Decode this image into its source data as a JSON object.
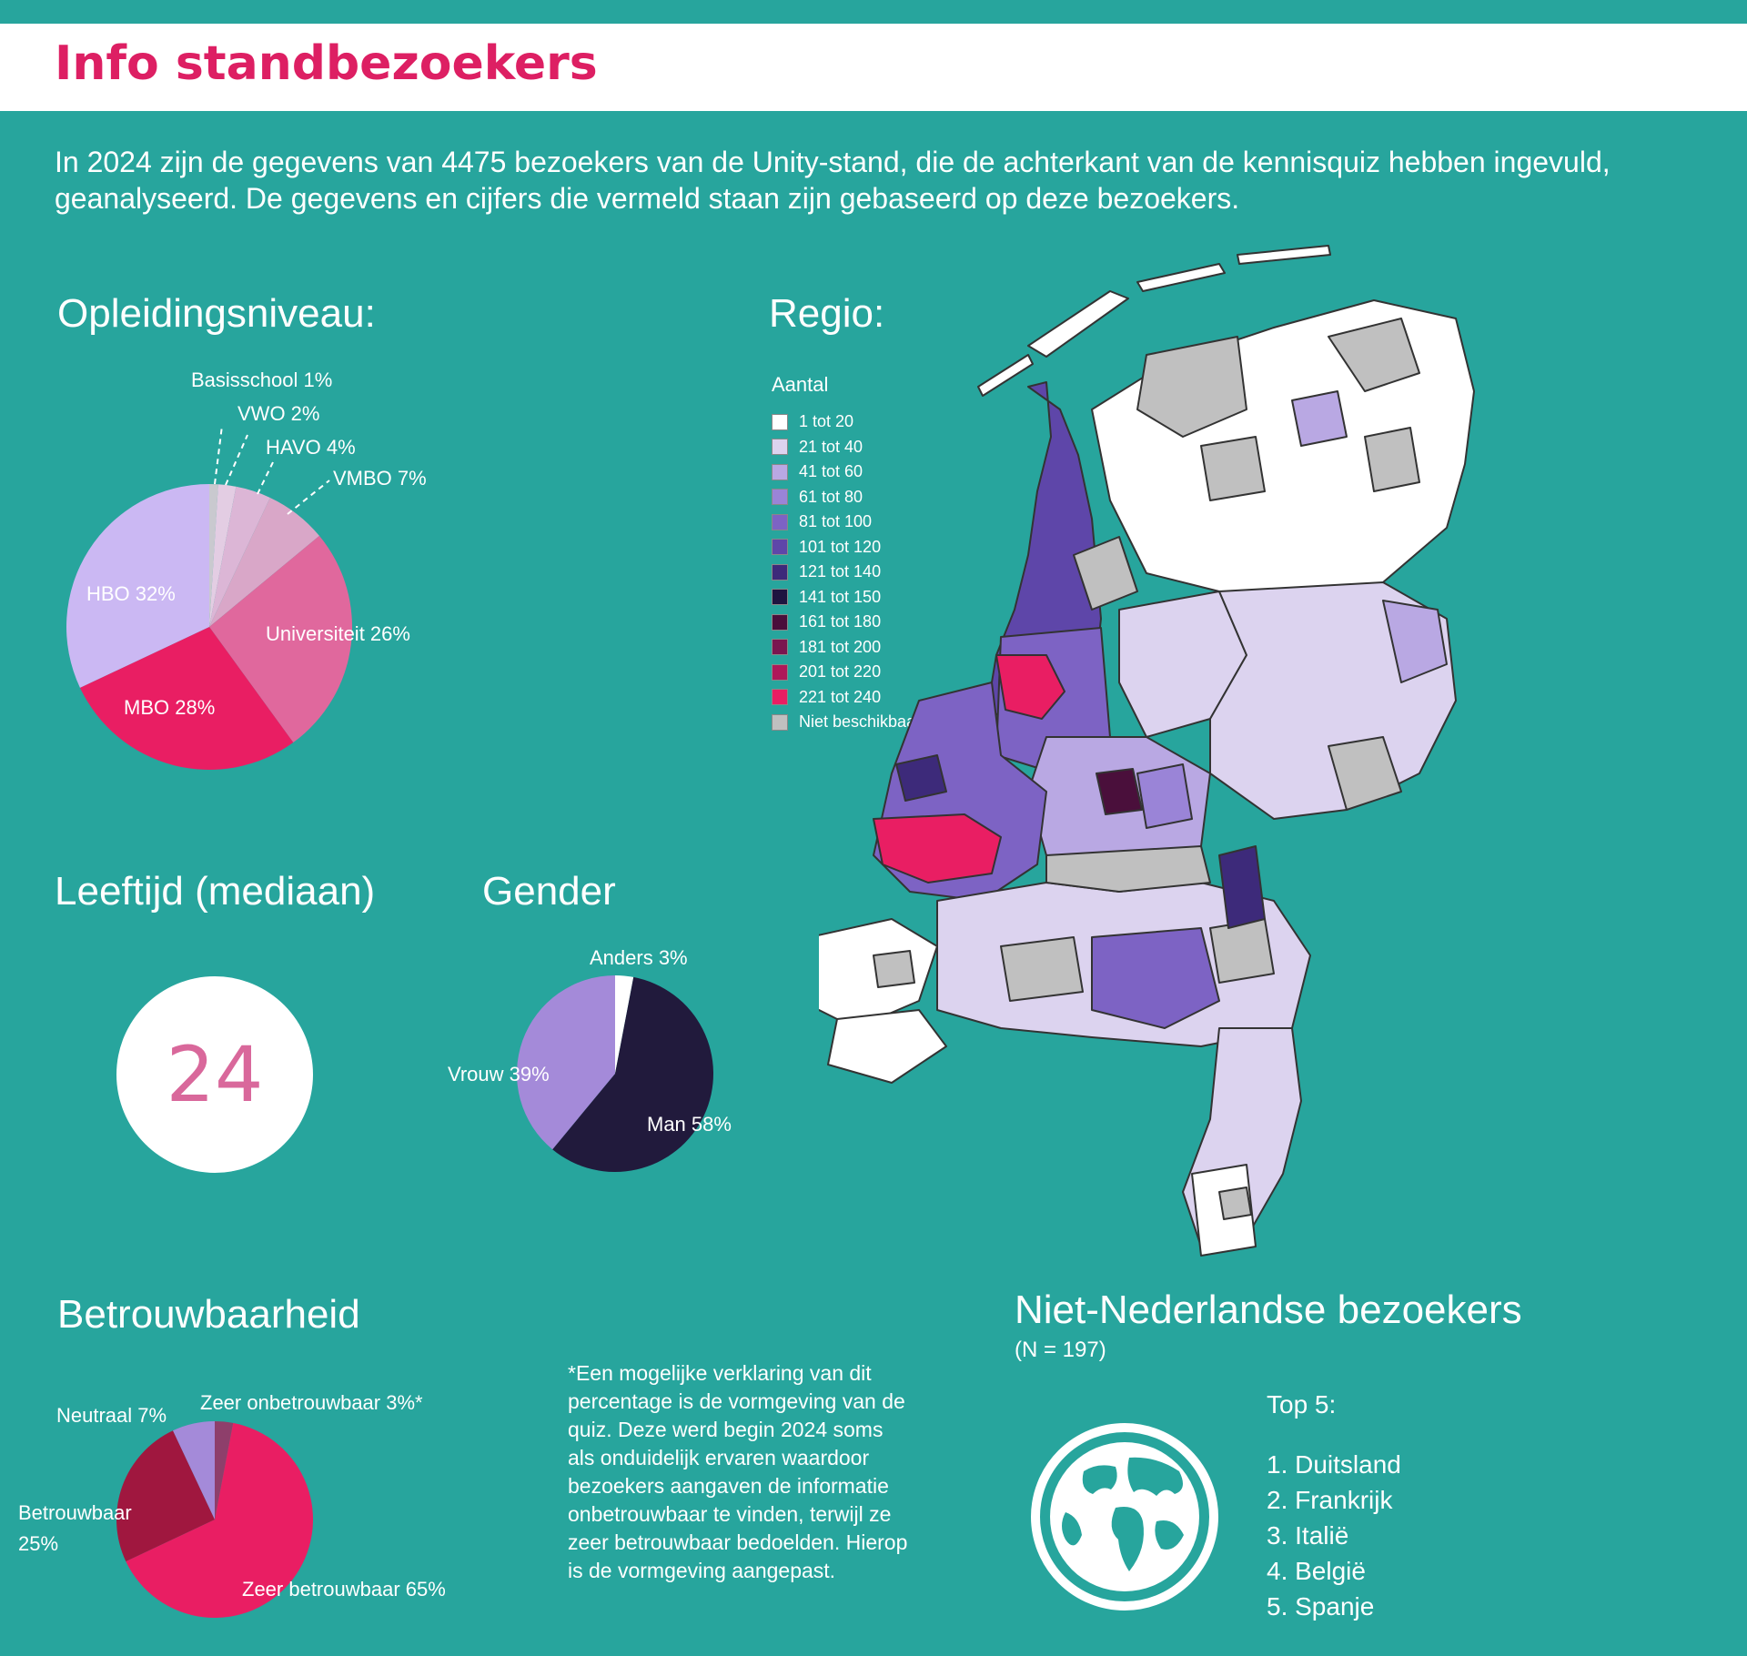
{
  "header": {
    "title": "Info standbezoekers"
  },
  "intro": {
    "text": "In 2024 zijn de gegevens van 4475 bezoekers van de Unity-stand, die de achterkant van de kennisquiz hebben ingevuld, geanalyseerd. De gegevens en cijfers die vermeld staan zijn gebaseerd op deze bezoekers."
  },
  "education": {
    "title": "Opleidingsniveau:"
  },
  "region": {
    "title": "Regio:"
  },
  "age": {
    "title": "Leeftijd (mediaan)",
    "value": "24"
  },
  "gender": {
    "title": "Gender"
  },
  "reliability": {
    "title": "Betrouwbaarheid"
  },
  "note": {
    "text": "*Een mogelijke verklaring van dit percentage is de vormgeving van de quiz. Deze werd begin 2024 soms als onduidelijk ervaren waardoor bezoekers aangaven de informatie onbetrouwbaar te vinden, terwijl ze zeer betrouwbaar bedoelden. Hierop is de vormgeving aangepast."
  },
  "foreign": {
    "title": "Niet-Nederlandse bezoekers",
    "subtitle": "(N = 197)",
    "top5_title": "Top 5:",
    "items": [
      "1. Duitsland",
      "2. Frankrijk",
      "3. Italië",
      "4. België",
      "5. Spanje"
    ],
    "icon": "globe-icon"
  },
  "legend": {
    "title": "Aantal",
    "items": [
      {
        "label": "1 tot 20",
        "color": "#ffffff"
      },
      {
        "label": "21 tot 40",
        "color": "#dcd3ef"
      },
      {
        "label": "41 tot 60",
        "color": "#b9a8e3"
      },
      {
        "label": "61 tot 80",
        "color": "#9a84d7"
      },
      {
        "label": "81 tot 100",
        "color": "#7d63c4"
      },
      {
        "label": "101 tot 120",
        "color": "#5e46a9"
      },
      {
        "label": "121 tot 140",
        "color": "#3d2a7a"
      },
      {
        "label": "141 tot 150",
        "color": "#1e1440"
      },
      {
        "label": "161 tot 180",
        "color": "#4a0f3b"
      },
      {
        "label": "181 tot 200",
        "color": "#7a1650"
      },
      {
        "label": "201 tot 220",
        "color": "#ae1859"
      },
      {
        "label": "221 tot 240",
        "color": "#e91e63"
      },
      {
        "label": "Niet beschikbaar",
        "color": "#c0c0c0"
      }
    ]
  },
  "chart_data": [
    {
      "type": "pie",
      "categories": [
        "Basisschool",
        "VWO",
        "HAVO",
        "VMBO",
        "Universiteit",
        "MBO",
        "HBO"
      ],
      "values": [
        1,
        2,
        4,
        7,
        26,
        28,
        32
      ],
      "labels": [
        "Basisschool 1%",
        "VWO 2%",
        "HAVO 4%",
        "VMBO 7%",
        "Universiteit 26%",
        "MBO 28%",
        "HBO 32%"
      ],
      "colors": [
        "#c9c9cf",
        "#e3cde3",
        "#dcb6d6",
        "#d9a7c8",
        "#e0689d",
        "#e91e63",
        "#cbb8f3"
      ]
    },
    {
      "type": "pie",
      "categories": [
        "Anders",
        "Man",
        "Vrouw"
      ],
      "values": [
        3,
        58,
        39
      ],
      "labels": [
        "Anders 3%",
        "Man 58%",
        "Vrouw 39%"
      ],
      "colors": [
        "#ffffff",
        "#211a3c",
        "#a48ad9"
      ]
    },
    {
      "type": "pie",
      "categories": [
        "Zeer onbetrouwbaar",
        "Zeer betrouwbaar",
        "Betrouwbaar",
        "Neutraal"
      ],
      "values": [
        3,
        65,
        25,
        7
      ],
      "labels": [
        "Zeer onbetrouwbaar 3%*",
        "Zeer betrouwbaar 65%",
        "Betrouwbaar 25%",
        "Neutraal 7%"
      ],
      "colors": [
        "#8e3f6b",
        "#e91e63",
        "#a0173f",
        "#a48ad9"
      ]
    }
  ]
}
